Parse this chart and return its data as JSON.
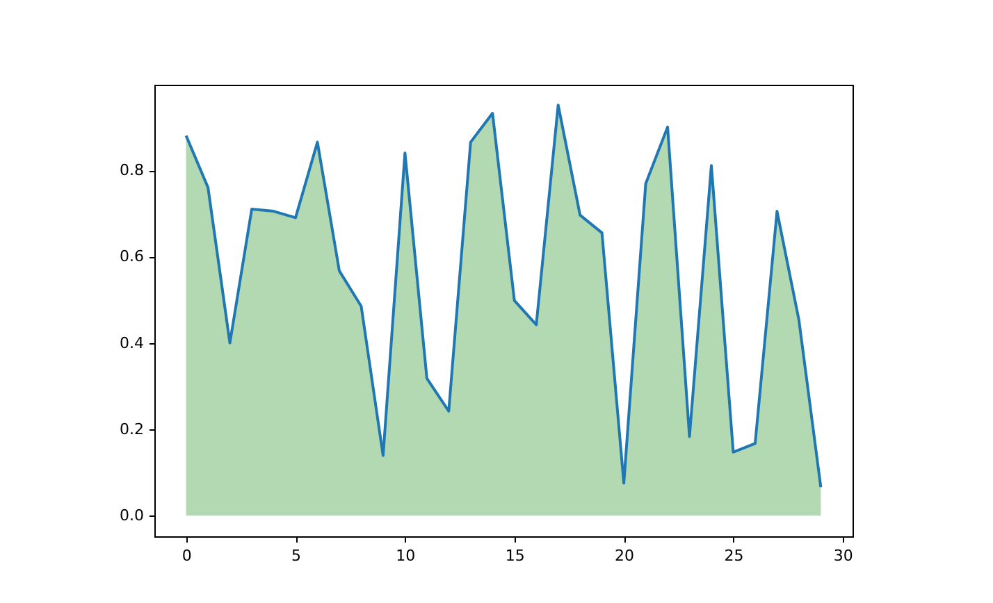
{
  "chart_data": {
    "type": "area",
    "x": [
      0,
      1,
      2,
      3,
      4,
      5,
      6,
      7,
      8,
      9,
      10,
      11,
      12,
      13,
      14,
      15,
      16,
      17,
      18,
      19,
      20,
      21,
      22,
      23,
      24,
      25,
      26,
      27,
      28,
      29
    ],
    "series": [
      {
        "color": "#b3d9b3",
        "values": [
          0.88,
          0.76,
          0.4,
          0.71,
          0.705,
          0.69,
          0.865,
          0.567,
          0.485,
          0.139,
          0.84,
          0.318,
          0.242,
          0.865,
          0.932,
          0.498,
          0.442,
          0.951,
          0.696,
          0.655,
          0.075,
          0.769,
          0.9,
          0.183,
          0.811,
          0.147,
          0.167,
          0.705,
          0.453,
          0.066
        ]
      }
    ],
    "xlim": [
      -1.45,
      30.45
    ],
    "xticks": [
      0,
      5,
      10,
      15,
      20,
      25,
      30
    ],
    "ylim": [
      -0.048,
      0.998
    ],
    "yticks": [
      {
        "value": 0,
        "label": "0.0"
      },
      0.2,
      0.4,
      0.6,
      0.8
    ],
    "grid": false
  }
}
